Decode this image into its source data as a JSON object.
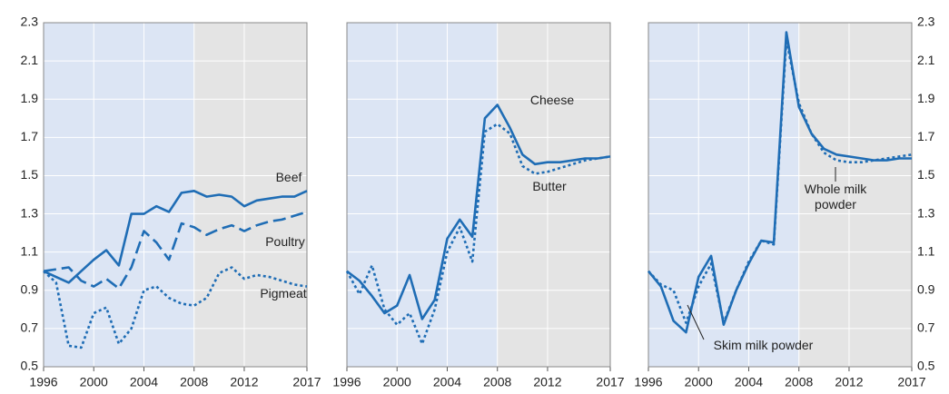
{
  "chart_data": [
    {
      "type": "line",
      "yaxis": "left",
      "shade_from": 2008,
      "x": [
        1996,
        1997,
        1998,
        1999,
        2000,
        2001,
        2002,
        2003,
        2004,
        2005,
        2006,
        2007,
        2008,
        2009,
        2010,
        2011,
        2012,
        2013,
        2014,
        2015,
        2016,
        2017
      ],
      "xlim": [
        1996,
        2017
      ],
      "xticks": [
        1996,
        2000,
        2004,
        2008,
        2012,
        2017
      ],
      "ylim": [
        0.5,
        2.3
      ],
      "yticks": [
        0.5,
        0.7,
        0.9,
        1.1,
        1.3,
        1.5,
        1.7,
        1.9,
        2.1,
        2.3
      ],
      "grid": true,
      "series": [
        {
          "name": "Beef",
          "color": "#1f6db5",
          "dash": "solid",
          "values": [
            1.0,
            0.97,
            0.94,
            1.0,
            1.06,
            1.11,
            1.03,
            1.3,
            1.3,
            1.34,
            1.31,
            1.41,
            1.42,
            1.39,
            1.4,
            1.39,
            1.34,
            1.37,
            1.38,
            1.39,
            1.39,
            1.42
          ]
        },
        {
          "name": "Poultry",
          "color": "#1f6db5",
          "dash": "dashed",
          "values": [
            1.0,
            1.01,
            1.02,
            0.95,
            0.92,
            0.96,
            0.91,
            1.02,
            1.21,
            1.15,
            1.06,
            1.25,
            1.23,
            1.19,
            1.22,
            1.24,
            1.21,
            1.24,
            1.26,
            1.27,
            1.29,
            1.31
          ]
        },
        {
          "name": "Pigmeat",
          "color": "#1f6db5",
          "dash": "dotted",
          "values": [
            1.0,
            0.94,
            0.61,
            0.6,
            0.78,
            0.81,
            0.62,
            0.7,
            0.9,
            0.92,
            0.86,
            0.83,
            0.82,
            0.86,
            0.99,
            1.02,
            0.96,
            0.98,
            0.97,
            0.95,
            0.93,
            0.92
          ]
        }
      ]
    },
    {
      "type": "line",
      "yaxis": "none",
      "shade_from": 2008,
      "x": [
        1996,
        1997,
        1998,
        1999,
        2000,
        2001,
        2002,
        2003,
        2004,
        2005,
        2006,
        2007,
        2008,
        2009,
        2010,
        2011,
        2012,
        2013,
        2014,
        2015,
        2016,
        2017
      ],
      "xlim": [
        1996,
        2017
      ],
      "xticks": [
        1996,
        2000,
        2004,
        2008,
        2012,
        2017
      ],
      "ylim": [
        0.5,
        2.3
      ],
      "yticks": [
        0.5,
        0.7,
        0.9,
        1.1,
        1.3,
        1.5,
        1.7,
        1.9,
        2.1,
        2.3
      ],
      "grid": true,
      "series": [
        {
          "name": "Cheese",
          "color": "#1f6db5",
          "dash": "solid",
          "values": [
            1.0,
            0.95,
            0.87,
            0.78,
            0.82,
            0.98,
            0.75,
            0.85,
            1.17,
            1.27,
            1.18,
            1.8,
            1.87,
            1.75,
            1.61,
            1.56,
            1.57,
            1.57,
            1.58,
            1.59,
            1.59,
            1.6
          ]
        },
        {
          "name": "Butter",
          "color": "#1f6db5",
          "dash": "dotted",
          "values": [
            1.0,
            0.88,
            1.03,
            0.8,
            0.72,
            0.78,
            0.62,
            0.8,
            1.1,
            1.23,
            1.05,
            1.73,
            1.77,
            1.72,
            1.55,
            1.51,
            1.52,
            1.54,
            1.56,
            1.58,
            1.59,
            1.6
          ]
        }
      ]
    },
    {
      "type": "line",
      "yaxis": "right",
      "shade_from": 2008,
      "x": [
        1996,
        1997,
        1998,
        1999,
        2000,
        2001,
        2002,
        2003,
        2004,
        2005,
        2006,
        2007,
        2008,
        2009,
        2010,
        2011,
        2012,
        2013,
        2014,
        2015,
        2016,
        2017
      ],
      "xlim": [
        1996,
        2017
      ],
      "xticks": [
        1996,
        2000,
        2004,
        2008,
        2012,
        2017
      ],
      "ylim": [
        0.5,
        2.3
      ],
      "yticks": [
        0.5,
        0.7,
        0.9,
        1.1,
        1.3,
        1.5,
        1.7,
        1.9,
        2.1,
        2.3
      ],
      "grid": true,
      "series": [
        {
          "name": "Whole milk powder",
          "color": "#1f6db5",
          "dash": "dotted",
          "values": [
            1.0,
            0.93,
            0.9,
            0.73,
            0.92,
            1.04,
            0.73,
            0.9,
            1.05,
            1.16,
            1.14,
            2.21,
            1.88,
            1.72,
            1.62,
            1.58,
            1.57,
            1.57,
            1.58,
            1.59,
            1.6,
            1.61
          ]
        },
        {
          "name": "Skim milk powder",
          "color": "#1f6db5",
          "dash": "solid",
          "values": [
            1.0,
            0.92,
            0.74,
            0.68,
            0.97,
            1.08,
            0.72,
            0.9,
            1.04,
            1.16,
            1.15,
            2.25,
            1.86,
            1.72,
            1.64,
            1.61,
            1.6,
            1.59,
            1.58,
            1.58,
            1.59,
            1.59
          ]
        }
      ]
    }
  ]
}
